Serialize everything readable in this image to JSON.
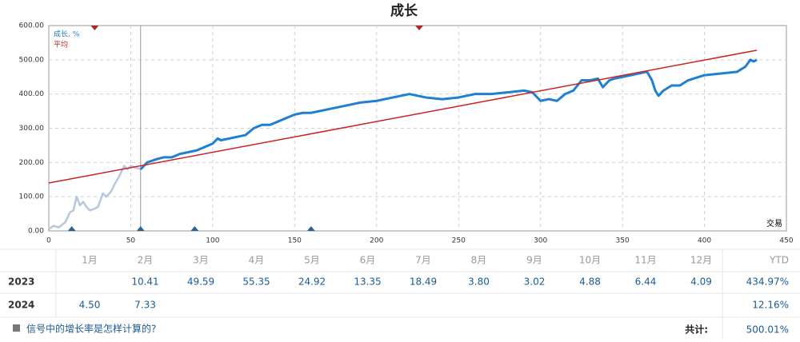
{
  "chart_data": {
    "type": "line",
    "title": "成长",
    "xlabel": "交易",
    "xlim": [
      0,
      450
    ],
    "xticks": [
      0,
      50,
      100,
      150,
      200,
      250,
      300,
      350,
      400,
      450
    ],
    "ylim": [
      0,
      600
    ],
    "yticks": [
      {
        "value": 0,
        "label": "0.00"
      },
      {
        "value": 100,
        "label": "100.00"
      },
      {
        "value": 200,
        "label": "200.00"
      },
      {
        "value": 300,
        "label": "300.00"
      },
      {
        "value": 400,
        "label": "400.00"
      },
      {
        "value": 500,
        "label": "500.00"
      },
      {
        "value": 600,
        "label": "600.00"
      }
    ],
    "grid": true,
    "legend": "upper left",
    "divider_x": 56,
    "faded_color": "#b4c8de",
    "markers_top": [
      28,
      226
    ],
    "markers_top_color": "#a52a2a",
    "markers_bottom": [
      14,
      56,
      89,
      160
    ],
    "markers_bottom_color": "#2a6496",
    "series": [
      {
        "name": "成长, %",
        "color": "#1f7fd4",
        "x": [
          0,
          3,
          6,
          10,
          13,
          15,
          17,
          19,
          21,
          23,
          25,
          28,
          30,
          33,
          35,
          38,
          40,
          43,
          46,
          48,
          50,
          53,
          56,
          58,
          60,
          63,
          66,
          70,
          75,
          80,
          85,
          90,
          95,
          100,
          103,
          105,
          110,
          115,
          120,
          125,
          130,
          135,
          140,
          145,
          150,
          155,
          160,
          170,
          180,
          190,
          200,
          205,
          210,
          215,
          220,
          225,
          230,
          240,
          250,
          260,
          270,
          280,
          290,
          295,
          300,
          305,
          310,
          315,
          320,
          325,
          330,
          335,
          338,
          342,
          345,
          350,
          355,
          360,
          365,
          368,
          370,
          372,
          375,
          380,
          385,
          390,
          400,
          410,
          420,
          425,
          428,
          430,
          432
        ],
        "values": [
          5,
          15,
          10,
          25,
          55,
          60,
          100,
          75,
          85,
          70,
          60,
          65,
          70,
          110,
          100,
          115,
          135,
          160,
          190,
          180,
          190,
          185,
          180,
          190,
          200,
          205,
          210,
          215,
          215,
          225,
          230,
          235,
          245,
          255,
          270,
          265,
          270,
          275,
          280,
          300,
          310,
          310,
          320,
          330,
          340,
          345,
          345,
          355,
          365,
          375,
          380,
          385,
          390,
          395,
          400,
          395,
          390,
          385,
          390,
          400,
          400,
          405,
          410,
          405,
          380,
          385,
          380,
          400,
          410,
          440,
          440,
          445,
          420,
          440,
          445,
          450,
          455,
          460,
          465,
          440,
          410,
          395,
          410,
          425,
          425,
          440,
          455,
          460,
          465,
          480,
          500,
          495,
          500
        ]
      },
      {
        "name": "平均",
        "color": "#cc2222",
        "x": [
          0,
          432
        ],
        "values": [
          140,
          528
        ]
      }
    ]
  },
  "table": {
    "header": [
      "1月",
      "2月",
      "3月",
      "4月",
      "5月",
      "6月",
      "7月",
      "8月",
      "9月",
      "10月",
      "11月",
      "12月",
      "YTD"
    ],
    "rows": [
      [
        "2023",
        null,
        "10.41",
        "49.59",
        "55.35",
        "24.92",
        "13.35",
        "18.49",
        "3.80",
        "3.02",
        "4.88",
        "6.44",
        "4.09",
        "434.97%"
      ],
      [
        "2024",
        "4.50",
        "7.33",
        null,
        null,
        null,
        null,
        null,
        null,
        null,
        null,
        null,
        null,
        "12.16%"
      ]
    ]
  },
  "footer": {
    "link": "信号中的增长率是怎样计算的?",
    "total_label": "共计:",
    "total": "500.01%"
  }
}
